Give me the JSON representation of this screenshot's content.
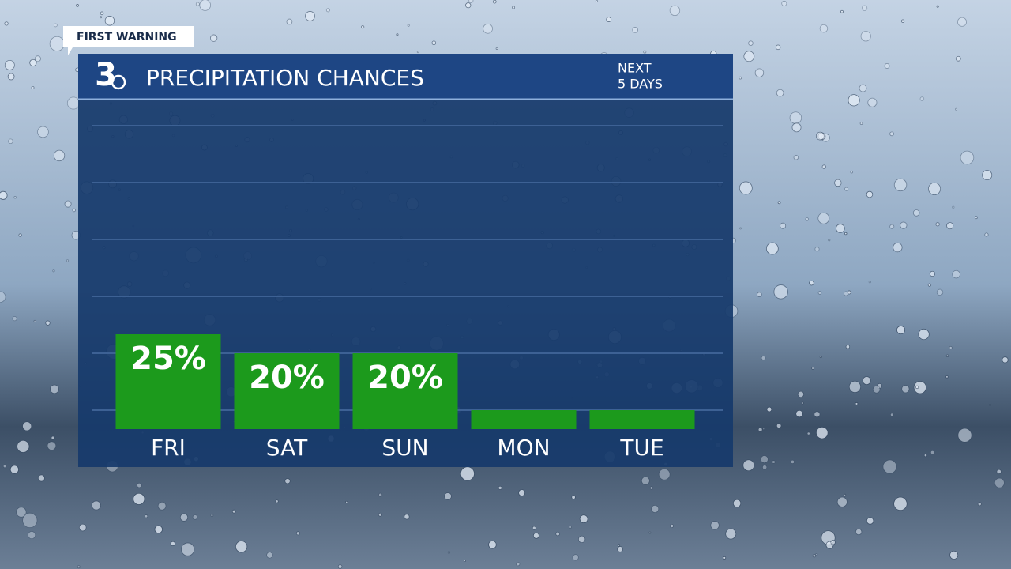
{
  "chart_data": {
    "type": "bar",
    "tag": "FIRST WARNING",
    "logo": "3",
    "title": "PRECIPITATION CHANCES",
    "subtitle": [
      "NEXT",
      "5 DAYS"
    ],
    "categories": [
      "FRI",
      "SAT",
      "SUN",
      "MON",
      "TUE"
    ],
    "values": [
      25,
      20,
      20,
      5,
      5
    ],
    "value_labels": [
      "25%",
      "20%",
      "20%",
      null,
      null
    ],
    "color": "#1c9a1c",
    "ylim": [
      0,
      85
    ],
    "yticks": [
      5,
      20,
      35,
      50,
      65,
      80
    ],
    "grid": true
  }
}
